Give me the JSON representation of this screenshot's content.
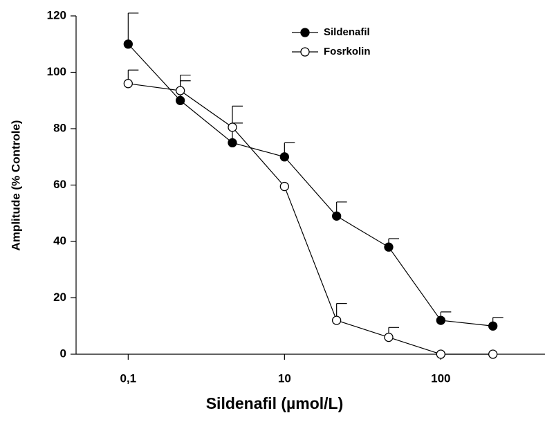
{
  "chart_data": {
    "type": "line",
    "xlabel": "Sildenafil (µmol/L)",
    "ylabel": "Amplitude (% Controle)",
    "categories": [
      "0,1",
      null,
      null,
      "10",
      null,
      null,
      "100",
      null
    ],
    "ylim": [
      0,
      120
    ],
    "yticks": [
      0,
      20,
      40,
      60,
      80,
      100,
      120
    ],
    "legend": "upper-right",
    "series": [
      {
        "name": "Sildenafil",
        "color": "#000000",
        "marker_fill": "#000000",
        "values": [
          110,
          90,
          75,
          70,
          49,
          38,
          12,
          10
        ],
        "errors": [
          11,
          7,
          7,
          5,
          5,
          3,
          3,
          3
        ]
      },
      {
        "name": "Fosrkolin",
        "color": "#000000",
        "marker_fill": "#ffffff",
        "values": [
          96,
          93.5,
          80.5,
          59.5,
          12,
          6,
          0,
          0
        ],
        "errors": [
          4.8,
          5.5,
          7.5,
          null,
          6,
          3.5,
          null,
          null
        ]
      }
    ]
  }
}
